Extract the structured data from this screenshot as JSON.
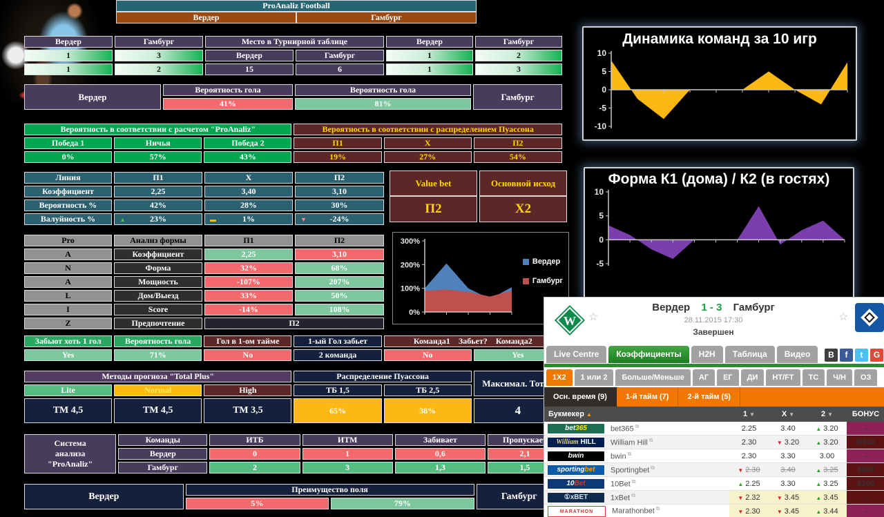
{
  "header": {
    "title": "ProAnaliz Football",
    "home": "Вердер",
    "away": "Гамбург"
  },
  "standings": {
    "cols": [
      "Вердер",
      "Гамбург",
      "Место в Турнирной таблице",
      "Вердер",
      "Гамбург"
    ],
    "sub": [
      "Вердер",
      "Гамбург"
    ],
    "places": [
      "15",
      "6"
    ],
    "row1": [
      "1",
      "3",
      "1",
      "2"
    ],
    "row2": [
      "1",
      "2",
      "1",
      "3"
    ]
  },
  "goal_prob": {
    "home": "Вердер",
    "away": "Гамбург",
    "label_home": "Вероятность гола",
    "label_away": "Вероятность гола",
    "home_value": "41%",
    "away_value": "81%"
  },
  "outcome_probs": {
    "proanaliz_title": "Вероятность в соответствии с расчетом \"ProAnaliz\"",
    "poisson_title": "Вероятность в соответствии с распределением Пуассона",
    "proanaliz_cols": [
      "Победа 1",
      "Ничья",
      "Победа 2"
    ],
    "proanaliz_vals": [
      "0%",
      "57%",
      "43%"
    ],
    "poisson_cols": [
      "П1",
      "Х",
      "П2"
    ],
    "poisson_vals": [
      "19%",
      "27%",
      "54%"
    ]
  },
  "line": {
    "cols": [
      "Линия",
      "П1",
      "Х",
      "П2"
    ],
    "rows": [
      {
        "label": "Коэффициент",
        "v": [
          "2,25",
          "3,40",
          "3,10"
        ]
      },
      {
        "label": "Вероятность %",
        "v": [
          "42%",
          "28%",
          "30%"
        ]
      },
      {
        "label": "Валуйность %",
        "v": [
          "23%",
          "1%",
          "-24%"
        ],
        "trends": [
          "up",
          "flat",
          "down"
        ]
      }
    ],
    "value_bet_label": "Value bet",
    "value_bet": "П2",
    "main_outcome_label": "Основной исход",
    "main_outcome": "Х2"
  },
  "pro_analysis": {
    "cols": [
      "Pro",
      "Анализ формы",
      "П1",
      "П2"
    ],
    "letters": [
      "A",
      "N",
      "A",
      "L",
      "I",
      "Z"
    ],
    "rows": [
      {
        "label": "Коэффициент",
        "v1": "2,25",
        "v2": "3,10"
      },
      {
        "label": "Форма",
        "v1": "32%",
        "v2": "68%"
      },
      {
        "label": "Мощность",
        "v1": "-107%",
        "v2": "207%"
      },
      {
        "label": "Дом/Выезд",
        "v1": "33%",
        "v2": "50%"
      },
      {
        "label": "Score",
        "v1": "-14%",
        "v2": "108%"
      }
    ],
    "pref_label": "Предпочтение",
    "pref": "П2"
  },
  "first_goal": {
    "cells": [
      {
        "h": "Забьют хоть 1 гол",
        "v": "Yes"
      },
      {
        "h": "Вероятность гола",
        "v": "71%"
      },
      {
        "h": "Гол в 1-ом тайме",
        "v": "No"
      },
      {
        "h": "1-ый Гол забьет",
        "v": "2 команда"
      }
    ],
    "wide": {
      "h1": "Команда1",
      "h2": "Забьет?",
      "h3": "Команда2",
      "v1": "No",
      "v2": "Yes"
    }
  },
  "totals": {
    "methods_title": "Методы прогноза \"Total Plus\"",
    "poisson_title": "Распределение Пуассона",
    "max_title": "Максимал. Тотал",
    "methods": [
      {
        "h": "Lite",
        "v": "ТМ 4,5"
      },
      {
        "h": "Normal",
        "v": "ТМ 4,5"
      },
      {
        "h": "High",
        "v": "ТМ 3,5"
      }
    ],
    "poisson": [
      {
        "h": "ТБ 1,5",
        "v": "65%"
      },
      {
        "h": "ТБ 2,5",
        "v": "38%"
      }
    ],
    "max_value": "4"
  },
  "system": {
    "title_lines": [
      "Система",
      "анализа",
      "\"ProAnaliz\""
    ],
    "cols": [
      "Команды",
      "ИТБ",
      "ИТМ",
      "Забивает",
      "Пропускает"
    ],
    "rows": [
      {
        "team": "Вердер",
        "v": [
          "0",
          "1",
          "0,6",
          "2,1"
        ]
      },
      {
        "team": "Гамбург",
        "v": [
          "2",
          "3",
          "1,3",
          "1,5"
        ]
      }
    ]
  },
  "field_advantage": {
    "home": "Вердер",
    "away": "Гамбург",
    "title": "Преимущество поля",
    "home_value": "5%",
    "away_value": "79%"
  },
  "chart_data": [
    {
      "id": "dynamics",
      "type": "area",
      "title": "Динамика команд за 10 игр",
      "x": [
        1,
        2,
        3,
        4,
        5,
        6,
        7,
        8,
        9,
        10
      ],
      "values": [
        8,
        -2.5,
        -8,
        0,
        0,
        0,
        5,
        0,
        -4,
        7.5
      ],
      "ylim": [
        -10,
        10
      ],
      "yticks": [
        "10",
        "5",
        "0",
        "-5",
        "-10"
      ],
      "color": "#fdb813",
      "grid": false,
      "legend_position": "none"
    },
    {
      "id": "form",
      "type": "area",
      "title": "Форма К1 (дома) / К2 (в гостях)",
      "x": [
        1,
        2,
        3,
        4,
        5,
        6,
        7,
        8,
        9,
        10,
        11,
        12
      ],
      "values": [
        3,
        1,
        -2,
        -4,
        0,
        0,
        0,
        7,
        -1,
        2,
        4,
        0
      ],
      "ylim": [
        -5,
        10
      ],
      "yticks": [
        "10",
        "5",
        "0",
        "-5"
      ],
      "color": "#7a3fad",
      "grid": false,
      "legend_position": "none"
    },
    {
      "id": "form_compare",
      "type": "area",
      "title": "",
      "categories": [
        1,
        2,
        3,
        4,
        5
      ],
      "series": [
        {
          "name": "Вердер",
          "color": "#4f81bd",
          "values": [
            100,
            205,
            100,
            55,
            105
          ]
        },
        {
          "name": "Гамбург",
          "color": "#c0504d",
          "values": [
            90,
            95,
            85,
            65,
            90
          ]
        }
      ],
      "ylim": [
        0,
        300
      ],
      "yticks": [
        "300%",
        "200%",
        "100%",
        "0%"
      ],
      "grid": false,
      "legend_position": "right"
    }
  ],
  "widget": {
    "home": "Вердер",
    "score": "1 - 3",
    "away": "Гамбург",
    "datetime": "28.11.2015 17:30",
    "status": "Завершен",
    "tabs": [
      {
        "label": "Live Centre",
        "active": false
      },
      {
        "label": "Коэффициенты",
        "active": true
      },
      {
        "label": "H2H",
        "active": false
      },
      {
        "label": "Таблица",
        "active": false
      },
      {
        "label": "Видео",
        "active": false
      }
    ],
    "social": [
      {
        "label": "B",
        "color": "#3f3f3f"
      },
      {
        "label": "f",
        "color": "#3a5a98"
      },
      {
        "label": "t",
        "color": "#4ec0f0"
      },
      {
        "label": "G",
        "color": "#dd4b39"
      }
    ],
    "market_tabs": [
      {
        "label": "1X2",
        "active": true
      },
      {
        "label": "1 или 2",
        "active": false
      },
      {
        "label": "Больше/Меньше",
        "active": false
      },
      {
        "label": "АГ",
        "active": false
      },
      {
        "label": "ЕГ",
        "active": false
      },
      {
        "label": "ДИ",
        "active": false
      },
      {
        "label": "НТ/FT",
        "active": false
      },
      {
        "label": "ТС",
        "active": false
      },
      {
        "label": "Ч/Н",
        "active": false
      },
      {
        "label": "ОЗ",
        "active": false
      }
    ],
    "period_tabs": [
      {
        "label": "Осн. время (9)",
        "active": true
      },
      {
        "label": "1-й тайм (7)",
        "active": false
      },
      {
        "label": "2-й тайм (5)",
        "active": false
      }
    ],
    "odds_columns": [
      "Букмекер",
      "1",
      "X",
      "2",
      "БОНУС"
    ],
    "bookmakers": [
      {
        "name": "bet365",
        "odds": [
          "2.25",
          "3.40",
          "3.20"
        ],
        "trends": [
          "",
          "",
          "up"
        ],
        "bonus": "-",
        "bonus_color": "#8e2156",
        "struck": false,
        "highlight": false
      },
      {
        "name": "William Hill",
        "odds": [
          "2.30",
          "3.20",
          "3.20"
        ],
        "trends": [
          "",
          "down",
          "up"
        ],
        "bonus": "$/€10",
        "bonus_color": "#5c1212",
        "struck": false,
        "highlight": false
      },
      {
        "name": "bwin",
        "odds": [
          "2.30",
          "3.30",
          "3.00"
        ],
        "trends": [
          "",
          "",
          ""
        ],
        "bonus": "-",
        "bonus_color": "#8e2156",
        "struck": false,
        "highlight": false
      },
      {
        "name": "Sportingbet",
        "odds": [
          "2.30",
          "3.40",
          "3.25"
        ],
        "trends": [
          "down",
          "",
          "up"
        ],
        "bonus": "$500",
        "bonus_color": "#5c1212",
        "struck": true,
        "highlight": false
      },
      {
        "name": "10Bet",
        "odds": [
          "2.25",
          "3.30",
          "3.25"
        ],
        "trends": [
          "up",
          "",
          "up"
        ],
        "bonus": "$300",
        "bonus_color": "#5c1212",
        "struck": false,
        "highlight": false
      },
      {
        "name": "1xBet",
        "odds": [
          "2.32",
          "3.45",
          "3.45"
        ],
        "trends": [
          "down",
          "down",
          "up"
        ],
        "bonus": "-",
        "bonus_color": "#5c1212",
        "struck": false,
        "highlight": true
      },
      {
        "name": "Marathonbet",
        "odds": [
          "2.30",
          "3.45",
          "3.44"
        ],
        "trends": [
          "down",
          "down",
          "up"
        ],
        "bonus": "-",
        "bonus_color": "#8e2156",
        "struck": false,
        "highlight": true
      }
    ]
  }
}
